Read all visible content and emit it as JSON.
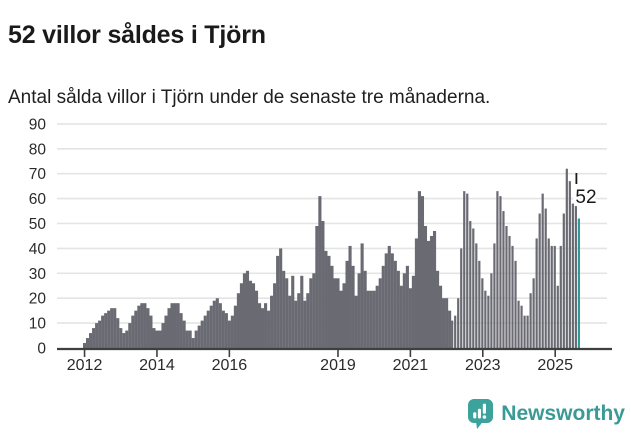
{
  "header": {
    "title": "52 villor såldes i Tjörn",
    "subtitle": "Antal sålda villor i Tjörn under de senaste tre månaderna."
  },
  "footer": {
    "brand": "Newsworthy",
    "logo_icon": "bar-chart-exclamation-bubble-icon"
  },
  "colors": {
    "bar": "#6a6a73",
    "highlight": "#2a9b96",
    "gridline": "#e4e4e4",
    "axis": "#3f3f3f",
    "tick_text": "#2b2b2b",
    "annotation_text": "#1a1a1a",
    "brand_teal": "#3a9a95"
  },
  "chart_data": {
    "type": "bar",
    "title": "52 villor såldes i Tjörn",
    "subtitle": "Antal sålda villor i Tjörn under de senaste tre månaderna.",
    "x_start_year": 2012,
    "x_tick_years": [
      2012,
      2014,
      2016,
      2019,
      2021,
      2023,
      2025
    ],
    "x_tick_labels": [
      "2012",
      "2014",
      "2016",
      "2019",
      "2021",
      "2023",
      "2025"
    ],
    "y_ticks": [
      0,
      10,
      20,
      30,
      40,
      50,
      60,
      70,
      80,
      90
    ],
    "ylim": [
      0,
      90
    ],
    "grid": "horizontal",
    "legend": "none",
    "annotation": {
      "text": "52",
      "value": 52
    },
    "highlight_last": true,
    "values": [
      2,
      4,
      6,
      8,
      10,
      11,
      13,
      14,
      15,
      16,
      16,
      12,
      8,
      6,
      7,
      10,
      13,
      15,
      17,
      18,
      18,
      16,
      13,
      8,
      7,
      7,
      10,
      13,
      16,
      18,
      18,
      18,
      14,
      11,
      7,
      7,
      4,
      7,
      9,
      11,
      13,
      15,
      17,
      19,
      20,
      18,
      15,
      14,
      11,
      13,
      17,
      22,
      26,
      30,
      31,
      27,
      26,
      23,
      18,
      16,
      18,
      15,
      21,
      26,
      37,
      40,
      31,
      28,
      21,
      29,
      19,
      22,
      29,
      19,
      22,
      28,
      30,
      49,
      61,
      51,
      39,
      37,
      33,
      28,
      28,
      23,
      26,
      35,
      41,
      33,
      21,
      30,
      42,
      31,
      23,
      23,
      23,
      25,
      28,
      33,
      38,
      41,
      38,
      35,
      31,
      25,
      30,
      33,
      24,
      29,
      44,
      63,
      61,
      49,
      43,
      45,
      47,
      31,
      25,
      20,
      20,
      15,
      11,
      13,
      20,
      40,
      63,
      62,
      51,
      48,
      42,
      35,
      28,
      23,
      21,
      30,
      42,
      63,
      61,
      55,
      49,
      45,
      41,
      35,
      19,
      17,
      13,
      13,
      22,
      28,
      44,
      54,
      62,
      56,
      44,
      41,
      41,
      25,
      41,
      54,
      72,
      67,
      58,
      57,
      52
    ]
  }
}
